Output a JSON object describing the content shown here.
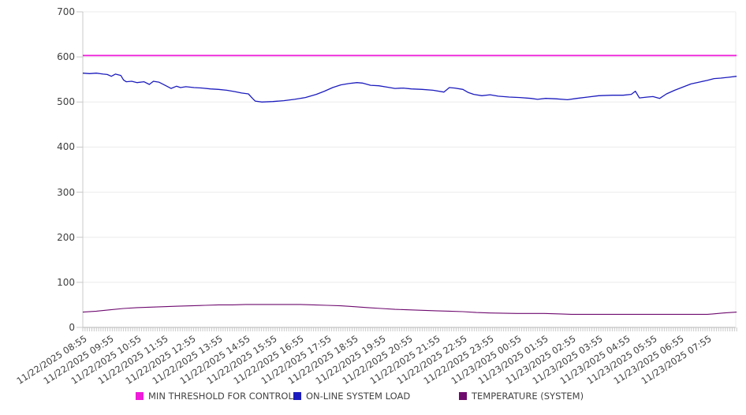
{
  "chart_data": {
    "type": "line",
    "title": "",
    "x_axis": {
      "unit": "hours since first sample",
      "labels": [
        "11/22/2025 08:55",
        "11/22/2025 09:55",
        "11/22/2025 10:55",
        "11/22/2025 11:55",
        "11/22/2025 12:55",
        "11/22/2025 13:55",
        "11/22/2025 14:55",
        "11/22/2025 15:55",
        "11/22/2025 16:55",
        "11/22/2025 17:55",
        "11/22/2025 18:55",
        "11/22/2025 19:55",
        "11/22/2025 20:55",
        "11/22/2025 21:55",
        "11/22/2025 22:55",
        "11/22/2025 23:55",
        "11/23/2025 00:55",
        "11/23/2025 01:55",
        "11/23/2025 02:55",
        "11/23/2025 03:55",
        "11/23/2025 04:55",
        "11/23/2025 05:55",
        "11/23/2025 06:55",
        "11/23/2025 07:55"
      ],
      "minor_tick_minutes": 5,
      "hours_total": 24.1,
      "label_rotation_deg": -33
    },
    "y_axis": {
      "min": 0,
      "max": 700,
      "step": 100,
      "ticks": [
        0,
        100,
        200,
        300,
        400,
        500,
        600,
        700
      ]
    },
    "grid": "horizontal",
    "legend_position": "bottom",
    "colors": {
      "grid_line": "#ebebeb",
      "axis_line": "#c8c8c8",
      "bottom_axis_line": "#b3b3b3",
      "tick_mark": "#c8c8c8",
      "tick_text": "#3f3f3f"
    },
    "series": [
      {
        "name": "MIN THRESHOLD FOR CONTROL",
        "color": "#ef1cd9",
        "line_width": 1.8,
        "points": [
          [
            0,
            603
          ],
          [
            24.08,
            603
          ]
        ]
      },
      {
        "name": "ON-LINE SYSTEM LOAD",
        "color": "#1c1cbe",
        "line_width": 1.3,
        "points": [
          [
            0,
            564
          ],
          [
            0.25,
            563
          ],
          [
            0.5,
            564
          ],
          [
            0.75,
            562
          ],
          [
            0.9,
            561
          ],
          [
            1.05,
            557
          ],
          [
            1.2,
            562
          ],
          [
            1.4,
            559
          ],
          [
            1.5,
            549
          ],
          [
            1.6,
            545
          ],
          [
            1.8,
            546
          ],
          [
            2,
            543
          ],
          [
            2.25,
            545
          ],
          [
            2.45,
            539
          ],
          [
            2.6,
            546
          ],
          [
            2.8,
            544
          ],
          [
            3,
            538
          ],
          [
            3.25,
            530
          ],
          [
            3.45,
            535
          ],
          [
            3.6,
            532
          ],
          [
            3.8,
            534
          ],
          [
            4.1,
            532
          ],
          [
            4.4,
            531
          ],
          [
            4.7,
            529
          ],
          [
            5,
            528
          ],
          [
            5.3,
            526
          ],
          [
            5.6,
            523
          ],
          [
            5.85,
            520
          ],
          [
            6.1,
            518
          ],
          [
            6.25,
            508
          ],
          [
            6.35,
            502
          ],
          [
            6.6,
            500
          ],
          [
            7,
            501
          ],
          [
            7.4,
            503
          ],
          [
            7.8,
            506
          ],
          [
            8.2,
            510
          ],
          [
            8.6,
            517
          ],
          [
            8.9,
            524
          ],
          [
            9.2,
            532
          ],
          [
            9.5,
            538
          ],
          [
            9.8,
            541
          ],
          [
            10.1,
            543
          ],
          [
            10.3,
            542
          ],
          [
            10.6,
            537
          ],
          [
            10.9,
            536
          ],
          [
            11.2,
            533
          ],
          [
            11.5,
            530
          ],
          [
            11.8,
            531
          ],
          [
            12.1,
            529
          ],
          [
            12.5,
            528
          ],
          [
            12.9,
            526
          ],
          [
            13.3,
            522
          ],
          [
            13.5,
            532
          ],
          [
            13.7,
            531
          ],
          [
            14,
            528
          ],
          [
            14.2,
            521
          ],
          [
            14.4,
            517
          ],
          [
            14.7,
            514
          ],
          [
            15,
            516
          ],
          [
            15.3,
            513
          ],
          [
            15.7,
            511
          ],
          [
            16.1,
            510
          ],
          [
            16.5,
            508
          ],
          [
            16.75,
            506
          ],
          [
            17.05,
            508
          ],
          [
            17.45,
            507
          ],
          [
            17.85,
            505
          ],
          [
            18.2,
            508
          ],
          [
            18.6,
            511
          ],
          [
            19,
            514
          ],
          [
            19.5,
            515
          ],
          [
            19.9,
            515
          ],
          [
            20.2,
            517
          ],
          [
            20.35,
            524
          ],
          [
            20.5,
            509
          ],
          [
            20.8,
            511
          ],
          [
            21,
            512
          ],
          [
            21.25,
            508
          ],
          [
            21.5,
            518
          ],
          [
            21.8,
            526
          ],
          [
            22.1,
            533
          ],
          [
            22.4,
            540
          ],
          [
            22.7,
            544
          ],
          [
            23,
            548
          ],
          [
            23.25,
            552
          ],
          [
            23.5,
            553
          ],
          [
            23.8,
            555
          ],
          [
            24.08,
            557
          ]
        ]
      },
      {
        "name": "TEMPERATURE (SYSTEM)",
        "color": "#6e0a6e",
        "line_width": 1.1,
        "points": [
          [
            0,
            34
          ],
          [
            0.5,
            36
          ],
          [
            1,
            39
          ],
          [
            1.5,
            42
          ],
          [
            2,
            44
          ],
          [
            2.5,
            45
          ],
          [
            3,
            46
          ],
          [
            3.5,
            47
          ],
          [
            4,
            48
          ],
          [
            4.5,
            49
          ],
          [
            5,
            50
          ],
          [
            5.5,
            50
          ],
          [
            6,
            51
          ],
          [
            7,
            51
          ],
          [
            8,
            51
          ],
          [
            8.5,
            50
          ],
          [
            9,
            49
          ],
          [
            9.5,
            48
          ],
          [
            10,
            46
          ],
          [
            10.5,
            44
          ],
          [
            11,
            42
          ],
          [
            11.5,
            40
          ],
          [
            12,
            39
          ],
          [
            12.5,
            38
          ],
          [
            13,
            37
          ],
          [
            13.5,
            36
          ],
          [
            14,
            35
          ],
          [
            14.5,
            33
          ],
          [
            15,
            32
          ],
          [
            16,
            31
          ],
          [
            17,
            31
          ],
          [
            17.6,
            30
          ],
          [
            18,
            29
          ],
          [
            19,
            29
          ],
          [
            20,
            29
          ],
          [
            21,
            29
          ],
          [
            22,
            29
          ],
          [
            23,
            29
          ],
          [
            23.2,
            30
          ],
          [
            23.6,
            32
          ],
          [
            24.08,
            34
          ]
        ]
      }
    ]
  },
  "legend": {
    "items": [
      {
        "label": "MIN THRESHOLD FOR CONTROL",
        "color": "#ef1cd9"
      },
      {
        "label": "ON-LINE SYSTEM LOAD",
        "color": "#1c1cbe"
      },
      {
        "label": "TEMPERATURE (SYSTEM)",
        "color": "#6e0a6e"
      }
    ]
  }
}
